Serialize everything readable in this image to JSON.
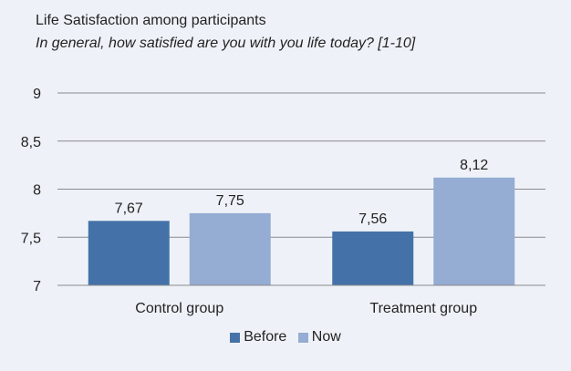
{
  "chart_data": {
    "type": "bar",
    "title": "Life Satisfaction among participants",
    "subtitle": "In general, how satisfied are you with you life today? [1-10]",
    "categories": [
      "Control group",
      "Treatment group"
    ],
    "series": [
      {
        "name": "Before",
        "color": "#4472a8",
        "values": [
          7.67,
          7.56
        ],
        "labels": [
          "7,67",
          "7,56"
        ]
      },
      {
        "name": "Now",
        "color": "#95acd3",
        "values": [
          7.75,
          8.12
        ],
        "labels": [
          "7,75",
          "8,12"
        ]
      }
    ],
    "yticks": [
      7,
      7.5,
      8,
      8.5,
      9
    ],
    "ytick_labels": [
      "7",
      "7,5",
      "8",
      "8,5",
      "9"
    ],
    "ylim": [
      7,
      9
    ],
    "grid": true,
    "legend_position": "bottom"
  }
}
